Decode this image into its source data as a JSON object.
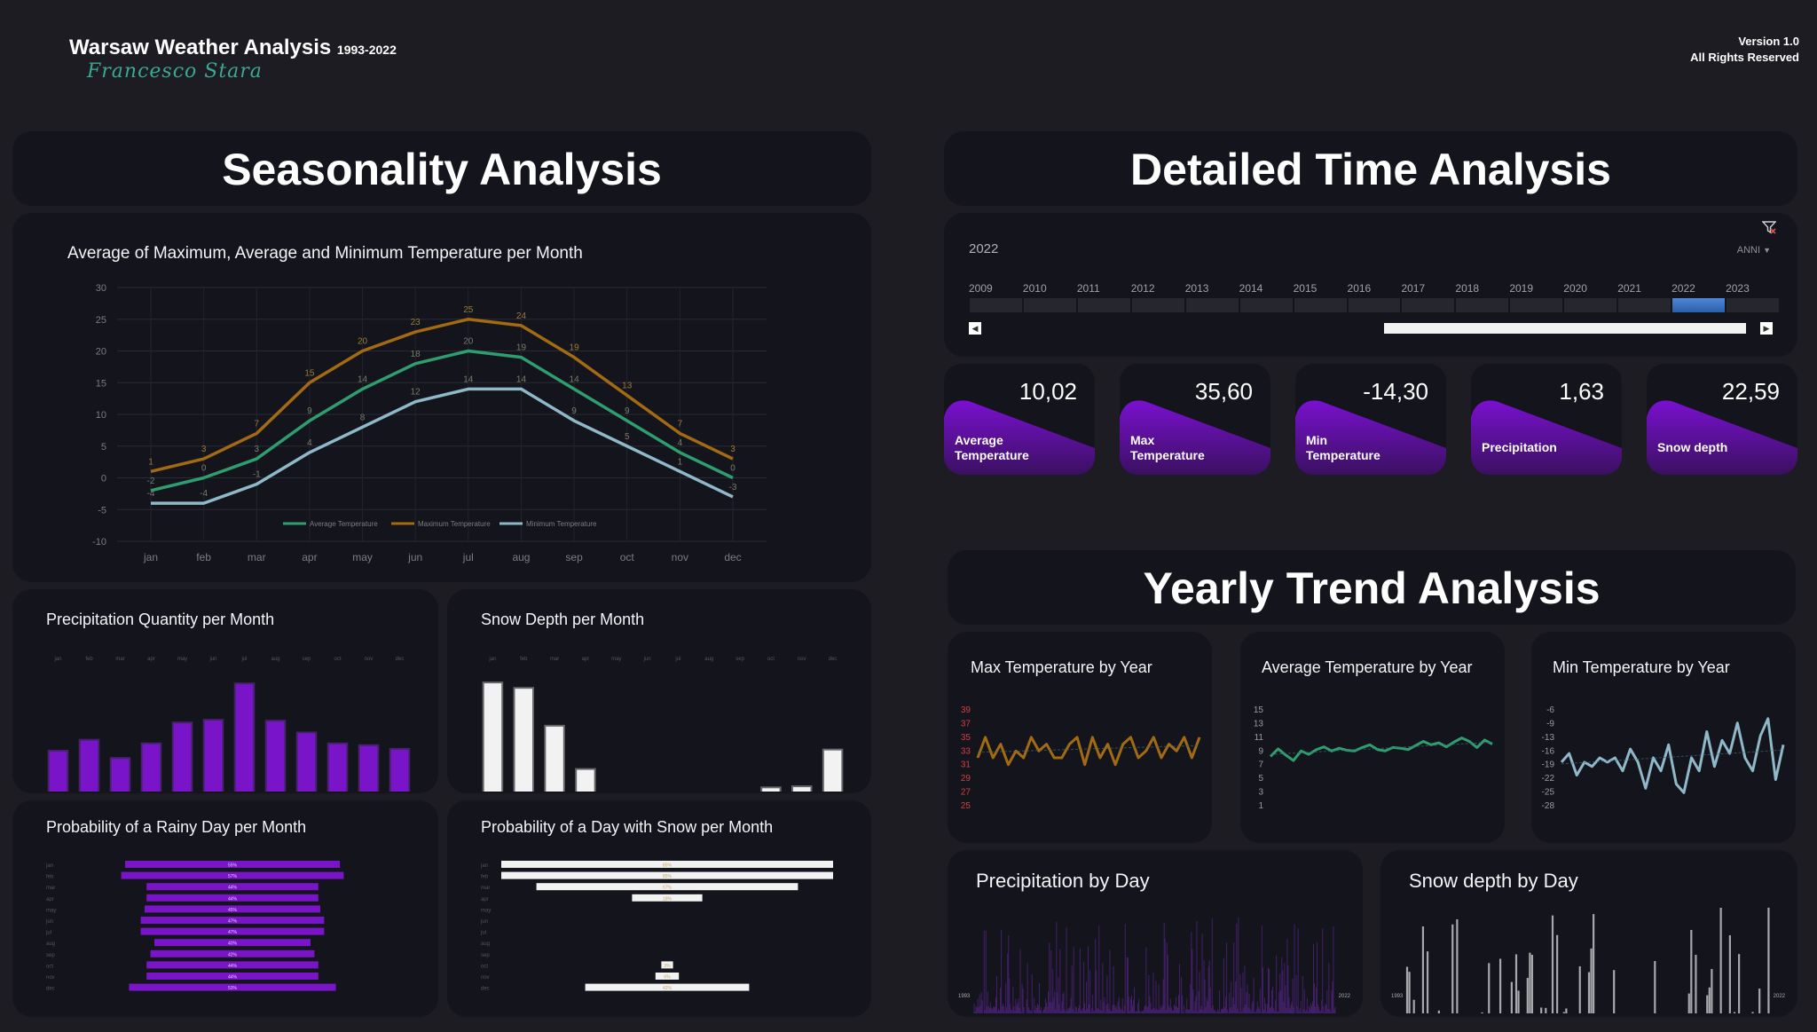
{
  "header": {
    "title": "Warsaw Weather Analysis",
    "years": "1993-2022",
    "author": "Francesco Stara",
    "version": "Version 1.0",
    "rights": "All Rights Reserved"
  },
  "sections": {
    "seasonality": "Seasonality Analysis",
    "detailed": "Detailed Time Analysis",
    "yearly": "Yearly Trend Analysis"
  },
  "colors": {
    "avg": "#2f9e6e",
    "max": "#a26a12",
    "min": "#8fb8c8",
    "purple": "#7a14c8",
    "white": "#f2f2f2"
  },
  "timeline": {
    "selected": "2022",
    "dropdown": "ANNI",
    "years": [
      "2009",
      "2010",
      "2011",
      "2012",
      "2013",
      "2014",
      "2015",
      "2016",
      "2017",
      "2018",
      "2019",
      "2020",
      "2021",
      "2022",
      "2023"
    ],
    "selected_index": 13,
    "filter_icon": "filter-clear-icon"
  },
  "kpis": [
    {
      "value": "10,02",
      "label1": "Average",
      "label2": "Temperature"
    },
    {
      "value": "35,60",
      "label1": "Max",
      "label2": "Temperature"
    },
    {
      "value": "-14,30",
      "label1": "Min",
      "label2": "Temperature"
    },
    {
      "value": "1,63",
      "label1": "Precipitation",
      "label2": ""
    },
    {
      "value": "22,59",
      "label1": "Snow depth",
      "label2": ""
    }
  ],
  "charts": {
    "temp_month": {
      "title": "Average of Maximum, Average and Minimum Temperature per Month",
      "type": "line",
      "categories": [
        "jan",
        "feb",
        "mar",
        "apr",
        "may",
        "jun",
        "jul",
        "aug",
        "sep",
        "oct",
        "nov",
        "dec"
      ],
      "yticks": [
        "30",
        "25",
        "20",
        "15",
        "10",
        "5",
        "0",
        "-5",
        "-10"
      ],
      "ylim": [
        -10,
        30
      ],
      "series": [
        {
          "name": "Maximum Temperature",
          "values": [
            1,
            3,
            7,
            15,
            20,
            23,
            25,
            24,
            19,
            13,
            7,
            3
          ],
          "labels": [
            "1",
            "3",
            "7",
            "15",
            "20",
            "23",
            "25",
            "24",
            "19",
            "13",
            "7",
            "3"
          ]
        },
        {
          "name": "Average Temperature",
          "values": [
            -2,
            0,
            3,
            9,
            14,
            18,
            20,
            19,
            14,
            9,
            4,
            0
          ],
          "labels": [
            "-2",
            "0",
            "3",
            "9",
            "14",
            "18",
            "20",
            "19",
            "14",
            "9",
            "4",
            "0"
          ]
        },
        {
          "name": "Minimum Temperature",
          "values": [
            -4,
            -4,
            -1,
            4,
            8,
            12,
            14,
            14,
            9,
            5,
            1,
            -3
          ],
          "labels": [
            "-4",
            "-4",
            "-1",
            "4",
            "8",
            "12",
            "14",
            "14",
            "9",
            "5",
            "1",
            "-3"
          ]
        }
      ],
      "legend": [
        "Average Temperature",
        "Maximum Temperature",
        "Minimum Temperature"
      ]
    },
    "precip_month": {
      "title": "Precipitation Quantity per Month",
      "type": "bar",
      "categories": [
        "jan",
        "feb",
        "mar",
        "apr",
        "may",
        "jun",
        "jul",
        "aug",
        "sep",
        "oct",
        "nov",
        "dec"
      ],
      "values": [
        44,
        56,
        36,
        52,
        75,
        78,
        118,
        77,
        64,
        52,
        50,
        46
      ]
    },
    "snow_month": {
      "title": "Snow Depth per Month",
      "type": "bar",
      "categories": [
        "jan",
        "feb",
        "mar",
        "apr",
        "may",
        "jun",
        "jul",
        "aug",
        "sep",
        "oct",
        "nov",
        "dec"
      ],
      "values": [
        100,
        95,
        60,
        20,
        0,
        0,
        0,
        0,
        0,
        3,
        4,
        38
      ]
    },
    "rain_prob": {
      "title": "Probability of a Rainy Day per Month",
      "type": "bar",
      "categories": [
        "jan",
        "feb",
        "mar",
        "apr",
        "may",
        "jun",
        "jul",
        "aug",
        "sep",
        "oct",
        "nov",
        "dec"
      ],
      "values": [
        55,
        57,
        44,
        44,
        45,
        47,
        47,
        40,
        42,
        44,
        44,
        53
      ],
      "labels": [
        "55%",
        "57%",
        "44%",
        "44%",
        "45%",
        "47%",
        "47%",
        "40%",
        "42%",
        "44%",
        "44%",
        "53%"
      ]
    },
    "snow_prob": {
      "title": "Probability of a Day with Snow per Month",
      "type": "bar",
      "categories": [
        "jan",
        "feb",
        "mar",
        "apr",
        "may",
        "jun",
        "jul",
        "aug",
        "sep",
        "oct",
        "nov",
        "dec"
      ],
      "values": [
        85,
        85,
        67,
        18,
        0,
        0,
        0,
        0,
        0,
        3,
        6,
        42
      ],
      "labels": [
        "85%",
        "85%",
        "67%",
        "18%",
        "",
        "",
        "",
        "",
        "",
        "3%",
        "6%",
        "42%"
      ]
    },
    "max_year": {
      "title": "Max Temperature by Year",
      "type": "line",
      "yticks": [
        "39",
        "37",
        "35",
        "33",
        "31",
        "29",
        "27",
        "25"
      ],
      "ylim": [
        25,
        39
      ],
      "values": [
        32,
        35,
        32,
        34,
        31,
        33,
        32,
        35,
        33,
        34,
        32,
        32,
        34,
        35,
        31,
        35,
        32,
        34,
        31,
        34,
        35,
        32,
        33,
        35,
        32,
        34,
        33,
        35,
        32,
        35
      ]
    },
    "avg_year": {
      "title": "Average Temperature by Year",
      "type": "line",
      "yticks": [
        "15",
        "13",
        "11",
        "9",
        "7",
        "5",
        "3",
        "1"
      ],
      "ylim": [
        1,
        15
      ],
      "values": [
        8.2,
        9.3,
        8.4,
        7.6,
        9.0,
        8.5,
        9.2,
        9.6,
        9.0,
        9.4,
        9.1,
        9.0,
        9.5,
        9.9,
        9.2,
        9.0,
        9.5,
        9.4,
        9.2,
        9.8,
        10.4,
        9.9,
        10.2,
        9.6,
        10.3,
        10.9,
        10.4,
        9.5,
        10.6,
        10.0
      ]
    },
    "min_year": {
      "title": "Min Temperature by Year",
      "type": "line",
      "yticks": [
        "-6",
        "-9",
        "-13",
        "-16",
        "-19",
        "-22",
        "-25",
        "-28"
      ],
      "ylim": [
        -28,
        -6
      ],
      "values": [
        -18,
        -16,
        -21,
        -18,
        -19,
        -17,
        -18,
        -17,
        -20,
        -15,
        -18,
        -24,
        -17,
        -20,
        -14,
        -23,
        -25,
        -17,
        -20,
        -11,
        -19,
        -13,
        -16,
        -9,
        -17,
        -20,
        -12,
        -8,
        -22,
        -14
      ]
    },
    "precip_day": {
      "title": "Precipitation by Day",
      "type": "bar",
      "x_start": "1993",
      "x_end": "2022"
    },
    "snow_day": {
      "title": "Snow depth by Day",
      "type": "bar",
      "x_start": "1993",
      "x_end": "2022"
    }
  }
}
